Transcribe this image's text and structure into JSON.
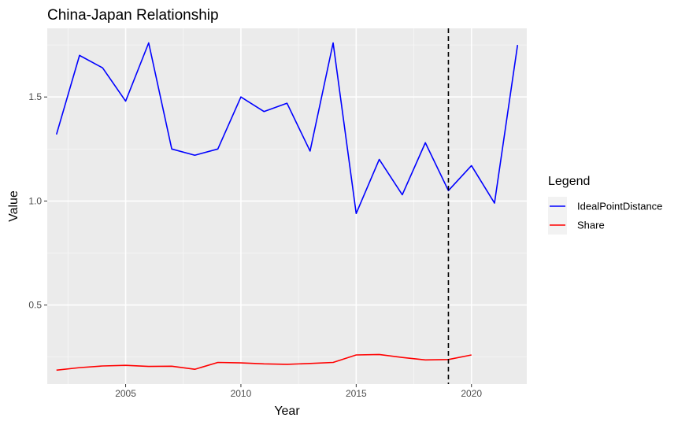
{
  "chart_data": {
    "type": "line",
    "title": "China-Japan Relationship",
    "xlabel": "Year",
    "ylabel": "Value",
    "xlim": [
      2001.6,
      2022.4
    ],
    "ylim": [
      0.12,
      1.83
    ],
    "x_ticks": [
      2005,
      2010,
      2015,
      2020
    ],
    "y_ticks": [
      0.5,
      1.0,
      1.5
    ],
    "y_tick_labels": [
      "0.5",
      "1.0",
      "1.5"
    ],
    "grid": true,
    "legend": {
      "title": "Legend",
      "placement": "right"
    },
    "series": [
      {
        "name": "IdealPointDistance",
        "color": "#0000ff",
        "x": [
          2002,
          2003,
          2004,
          2005,
          2006,
          2007,
          2008,
          2009,
          2010,
          2011,
          2012,
          2013,
          2014,
          2015,
          2016,
          2017,
          2018,
          2019,
          2020,
          2021,
          2022
        ],
        "values": [
          1.32,
          1.7,
          1.64,
          1.48,
          1.76,
          1.25,
          1.22,
          1.25,
          1.5,
          1.43,
          1.47,
          1.24,
          1.76,
          0.94,
          1.2,
          1.03,
          1.28,
          1.05,
          1.17,
          0.99,
          1.75
        ]
      },
      {
        "name": "Share",
        "color": "#ff0000",
        "x": [
          2002,
          2003,
          2004,
          2005,
          2006,
          2007,
          2008,
          2009,
          2010,
          2011,
          2012,
          2013,
          2014,
          2015,
          2016,
          2017,
          2018,
          2019,
          2020
        ],
        "values": [
          0.187,
          0.199,
          0.207,
          0.21,
          0.205,
          0.206,
          0.191,
          0.224,
          0.222,
          0.217,
          0.215,
          0.219,
          0.224,
          0.26,
          0.262,
          0.248,
          0.236,
          0.238,
          0.26
        ]
      }
    ],
    "annotations": [
      {
        "type": "vline",
        "x": 2019,
        "style": "dashed",
        "color": "#000000"
      }
    ]
  }
}
